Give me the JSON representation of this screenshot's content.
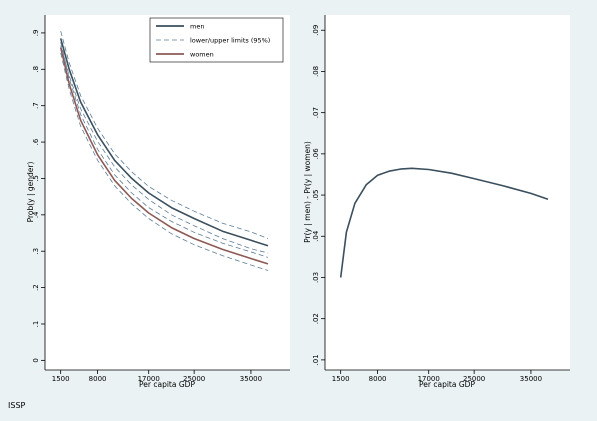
{
  "note": "ISSP",
  "colors": {
    "men": "#3b4f5e",
    "limits": "#5d7c96",
    "women": "#8c5a55",
    "plot_bg": "#ffffff",
    "page_bg": "#eaf2f3"
  },
  "chart_data": [
    {
      "type": "line",
      "xlabel": "Per capita GDP",
      "ylabel": "Prob(y | gender)",
      "xlim": [
        500,
        41000
      ],
      "ylim": [
        -0.01,
        0.93
      ],
      "xticks": [
        1500,
        8000,
        17000,
        25000,
        35000
      ],
      "xtick_labels": [
        "1500",
        "8000",
        "17000",
        "25000",
        "35000"
      ],
      "yticks": [
        0,
        0.1,
        0.2,
        0.3,
        0.4,
        0.5,
        0.6,
        0.7,
        0.8,
        0.9
      ],
      "ytick_labels": [
        "0",
        ".1",
        ".2",
        ".3",
        ".4",
        ".5",
        ".6",
        ".7",
        ".8",
        ".9"
      ],
      "grid": false,
      "legend_position": "top-right",
      "x": [
        1500,
        3000,
        5000,
        8000,
        11000,
        14000,
        17000,
        21000,
        25000,
        30000,
        35000,
        38000
      ],
      "series": [
        {
          "name": "men",
          "style": "solid",
          "values": [
            0.885,
            0.8,
            0.71,
            0.62,
            0.55,
            0.5,
            0.46,
            0.42,
            0.39,
            0.355,
            0.33,
            0.315
          ]
        },
        {
          "name": "lower/upper limits (95%)",
          "style": "dashed",
          "values": [
            0.905,
            0.818,
            0.728,
            0.638,
            0.568,
            0.518,
            0.478,
            0.44,
            0.41,
            0.377,
            0.353,
            0.335
          ]
        },
        {
          "name": "",
          "style": "dashed",
          "values": [
            0.865,
            0.782,
            0.692,
            0.602,
            0.532,
            0.482,
            0.442,
            0.4,
            0.37,
            0.335,
            0.307,
            0.295
          ]
        },
        {
          "name": "women",
          "style": "solid",
          "values": [
            0.86,
            0.76,
            0.66,
            0.565,
            0.495,
            0.445,
            0.405,
            0.365,
            0.335,
            0.305,
            0.28,
            0.265
          ]
        },
        {
          "name": "",
          "style": "dashed",
          "values": [
            0.875,
            0.775,
            0.676,
            0.58,
            0.51,
            0.46,
            0.42,
            0.382,
            0.352,
            0.322,
            0.298,
            0.283
          ]
        },
        {
          "name": "",
          "style": "dashed",
          "values": [
            0.845,
            0.745,
            0.644,
            0.55,
            0.48,
            0.43,
            0.39,
            0.348,
            0.318,
            0.288,
            0.262,
            0.247
          ]
        }
      ]
    },
    {
      "type": "line",
      "xlabel": "Per capita GDP",
      "ylabel": "Pr(y | men) - Pr(y | women)",
      "xlim": [
        500,
        41000
      ],
      "ylim": [
        0.009,
        0.092
      ],
      "xticks": [
        1500,
        8000,
        17000,
        25000,
        35000
      ],
      "xtick_labels": [
        "1500",
        "8000",
        "17000",
        "25000",
        "35000"
      ],
      "yticks": [
        0.01,
        0.02,
        0.03,
        0.04,
        0.05,
        0.06,
        0.07,
        0.08,
        0.09
      ],
      "ytick_labels": [
        ".01",
        ".02",
        ".03",
        ".04",
        ".05",
        ".06",
        ".07",
        ".08",
        ".09"
      ],
      "grid": false,
      "x": [
        1500,
        2500,
        4000,
        6000,
        8000,
        10000,
        12000,
        14000,
        17000,
        21000,
        25000,
        30000,
        35000,
        38000
      ],
      "series": [
        {
          "name": "",
          "style": "solid",
          "values": [
            0.03,
            0.041,
            0.048,
            0.0525,
            0.0548,
            0.0558,
            0.0563,
            0.0565,
            0.0562,
            0.0553,
            0.054,
            0.0523,
            0.0504,
            0.049
          ]
        }
      ]
    }
  ]
}
